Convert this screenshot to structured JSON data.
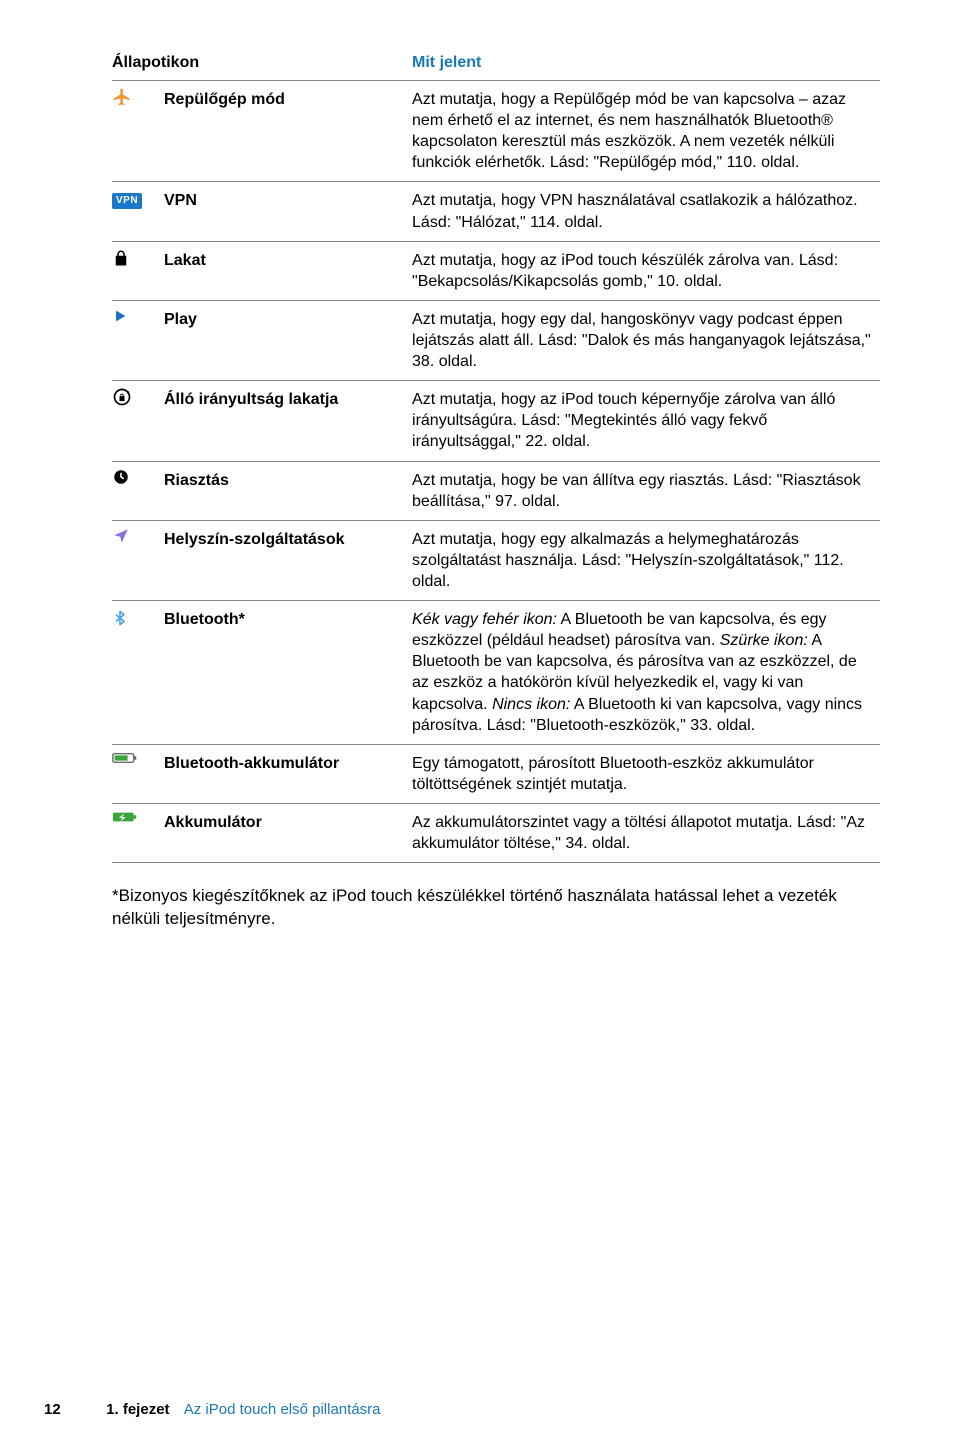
{
  "colors": {
    "heading": "#1978b6",
    "rule": "#888888",
    "airplane": "#f59331",
    "vpn": "#1978c8",
    "play": "#196fc0",
    "location": "#8f6fd9",
    "bluetooth": "#4aa2e6",
    "batteryBody": "#3aa63a",
    "batteryBolt": "#ffffff"
  },
  "header": {
    "iconCol": "Állapotikon",
    "meaningCol": "Mit jelent"
  },
  "rows": [
    {
      "icon": "airplane",
      "label": "Repülőgép mód",
      "desc": "Azt mutatja, hogy a Repülőgép mód be van kapcsolva – azaz nem érhető el az internet, és nem használhatók Bluetooth® kapcsolaton keresztül más eszközök. A nem vezeték nélküli funkciók elérhetők. Lásd: \"Repülőgép mód,\" 110. oldal."
    },
    {
      "icon": "vpn",
      "label": "VPN",
      "desc": "Azt mutatja, hogy VPN használatával csatlakozik a hálózathoz. Lásd: \"Hálózat,\" 114. oldal."
    },
    {
      "icon": "lock",
      "label": "Lakat",
      "desc": "Azt mutatja, hogy az iPod touch készülék zárolva van. Lásd: \"Bekapcsolás/Kikapcsolás gomb,\" 10. oldal."
    },
    {
      "icon": "play",
      "label": "Play",
      "desc": "Azt mutatja, hogy egy dal, hangoskönyv vagy podcast éppen lejátszás alatt áll. Lásd: \"Dalok és más hanganyagok lejátszása,\" 38. oldal."
    },
    {
      "icon": "orientation-lock",
      "label": "Álló irányultság lakatja",
      "desc": "Azt mutatja, hogy az iPod touch képernyője zárolva van álló irányultságúra. Lásd: \"Megtekintés álló vagy fekvő irányultsággal,\" 22. oldal."
    },
    {
      "icon": "alarm",
      "label": "Riasztás",
      "desc": "Azt mutatja, hogy be van állítva egy riasztás. Lásd: \"Riasztások beállítása,\" 97. oldal."
    },
    {
      "icon": "location",
      "label": "Helyszín-szolgáltatások",
      "desc": "Azt mutatja, hogy egy alkalmazás a helymeghatározás szolgáltatást használja. Lásd: \"Helyszín-szolgáltatások,\" 112. oldal."
    },
    {
      "icon": "bluetooth",
      "label": "Bluetooth*",
      "desc": "Kék vagy fehér ikon:  A Bluetooth be van kapcsolva, és egy eszközzel (például headset) párosítva van. Szürke ikon:  A Bluetooth be van kapcsolva, és párosítva van az eszközzel, de az eszköz a hatókörön kívül helyezkedik el, vagy ki van kapcsolva. Nincs ikon:  A Bluetooth ki van kapcsolva, vagy nincs párosítva. Lásd: \"Bluetooth-eszközök,\" 33. oldal.",
      "emphasis": [
        {
          "text": "Kék vagy fehér ikon:",
          "italic": true
        },
        {
          "text": "Szürke ikon:",
          "italic": true
        },
        {
          "text": "Nincs ikon:",
          "italic": true
        }
      ]
    },
    {
      "icon": "bluetooth-battery",
      "label": "Bluetooth-akkumulátor",
      "desc": "Egy támogatott, párosított Bluetooth-eszköz akkumulátor töltöttségének szintjét mutatja."
    },
    {
      "icon": "battery",
      "label": "Akkumulátor",
      "desc": "Az akkumulátorszintet vagy a töltési állapotot mutatja. Lásd: \"Az akkumulátor töltése,\" 34. oldal."
    }
  ],
  "note": "*Bizonyos kiegészítőknek az iPod touch készülékkel történő használata hatással lehet a vezeték nélküli teljesítményre.",
  "footer": {
    "page": "12",
    "chapter": "1. fejezet",
    "title": "Az iPod touch első pillantásra"
  }
}
